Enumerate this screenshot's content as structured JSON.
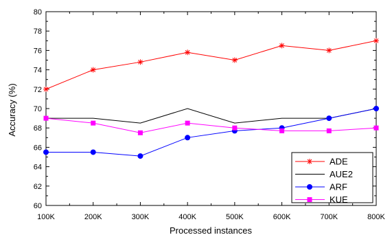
{
  "chart_data": {
    "type": "line",
    "title": "",
    "xlabel": "Processed instances",
    "ylabel": "Accuracy (%)",
    "x": [
      "100K",
      "200K",
      "300K",
      "400K",
      "500K",
      "600K",
      "700K",
      "800K"
    ],
    "xlim": [
      100,
      800
    ],
    "ylim": [
      60,
      80
    ],
    "yticks": [
      60,
      62,
      64,
      66,
      68,
      70,
      72,
      74,
      76,
      78,
      80
    ],
    "grid": false,
    "legend_position": "bottom-right",
    "series": [
      {
        "name": "ADE",
        "color": "#ff0000",
        "marker": "asterisk",
        "values": [
          72.0,
          74.0,
          74.8,
          75.8,
          75.0,
          76.5,
          76.0,
          77.0
        ]
      },
      {
        "name": "AUE2",
        "color": "#000000",
        "marker": "none",
        "values": [
          69.0,
          69.0,
          68.5,
          70.0,
          68.5,
          69.0,
          69.0,
          70.0
        ]
      },
      {
        "name": "ARF",
        "color": "#0000ff",
        "marker": "circle",
        "values": [
          65.5,
          65.5,
          65.1,
          67.0,
          67.7,
          68.0,
          69.0,
          70.0
        ]
      },
      {
        "name": "KUE",
        "color": "#ff00ff",
        "marker": "square",
        "values": [
          69.0,
          68.5,
          67.5,
          68.5,
          68.0,
          67.7,
          67.7,
          68.0
        ]
      }
    ]
  }
}
